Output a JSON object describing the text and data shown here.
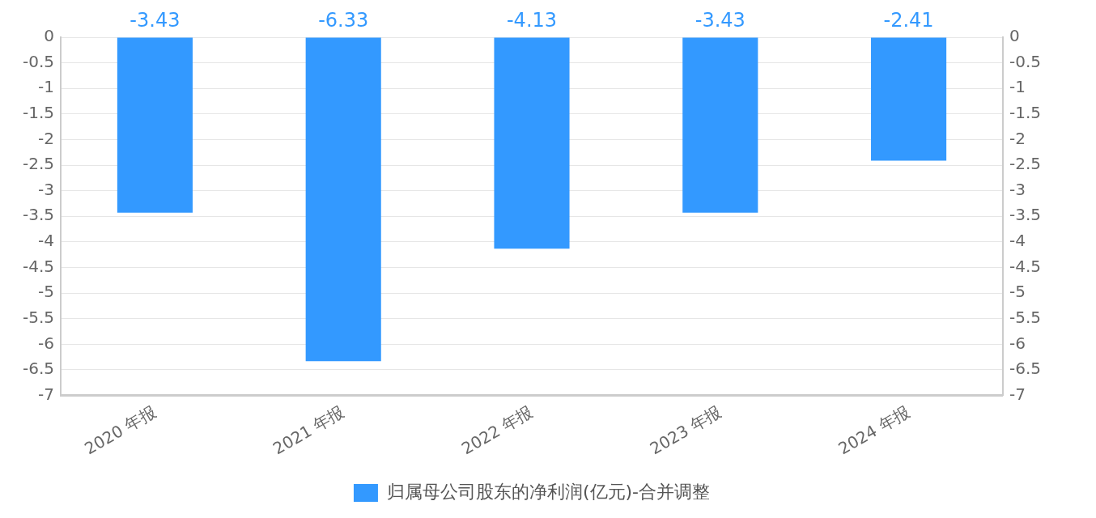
{
  "chart_data": {
    "type": "bar",
    "categories": [
      "2020 年报",
      "2021 年报",
      "2022 年报",
      "2023 年报",
      "2024 年报"
    ],
    "series": [
      {
        "name": "归属母公司股东的净利润(亿元)-合并调整",
        "color": "#3399ff",
        "values": [
          -3.43,
          -6.33,
          -4.13,
          -3.43,
          -2.41
        ]
      }
    ],
    "ylim": [
      -7,
      0
    ],
    "yticks": [
      -7,
      -6.5,
      -6,
      -5.5,
      -5,
      -4.5,
      -4,
      -3.5,
      -3,
      -2.5,
      -2,
      -1.5,
      -1,
      -0.5,
      0
    ],
    "y2lim": [
      -7,
      0
    ],
    "y2ticks": [
      -7,
      -6.5,
      -6,
      -5.5,
      -5,
      -4.5,
      -4,
      -3.5,
      -3,
      -2.5,
      -2,
      -1.5,
      -1,
      -0.5,
      0
    ],
    "data_labels": true,
    "grid": "y",
    "legend": "bottom"
  }
}
